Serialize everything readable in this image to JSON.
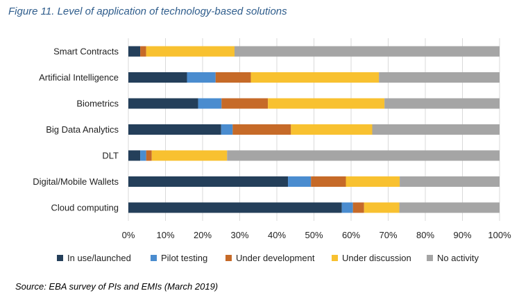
{
  "figure_title": "Figure 11. Level of application of technology-based solutions",
  "source": "Source: EBA survey of PIs and EMIs (March 2019)",
  "chart_data": {
    "type": "bar",
    "orientation": "horizontal",
    "stacked": true,
    "title": "Figure 11. Level of application of technology-based solutions",
    "categories": [
      "Smart Contracts",
      "Artificial Intelligence",
      "Biometrics",
      "Big Data Analytics",
      "DLT",
      "Digital/Mobile Wallets",
      "Cloud computing"
    ],
    "series": [
      {
        "name": "In use/launched",
        "color": "#243f5a",
        "values": [
          3.2,
          15.8,
          18.8,
          25.0,
          3.2,
          43.0,
          57.5
        ]
      },
      {
        "name": "Pilot testing",
        "color": "#4a8ccf",
        "values": [
          0.0,
          7.7,
          6.3,
          3.1,
          1.6,
          6.2,
          3.0
        ]
      },
      {
        "name": "Under development",
        "color": "#c66a28",
        "values": [
          1.6,
          9.5,
          12.5,
          15.7,
          1.5,
          9.4,
          3.0
        ]
      },
      {
        "name": "Under discussion",
        "color": "#f8c130",
        "values": [
          23.8,
          34.5,
          31.4,
          21.9,
          20.3,
          14.5,
          9.5
        ]
      },
      {
        "name": "No activity",
        "color": "#a5a5a5",
        "values": [
          71.4,
          32.5,
          31.0,
          34.3,
          73.4,
          26.9,
          27.0
        ]
      }
    ],
    "xlim": [
      0,
      100
    ],
    "x_ticks": [
      "0%",
      "10%",
      "20%",
      "30%",
      "40%",
      "50%",
      "60%",
      "70%",
      "80%",
      "90%",
      "100%"
    ],
    "grid": true,
    "legend_position": "bottom"
  }
}
